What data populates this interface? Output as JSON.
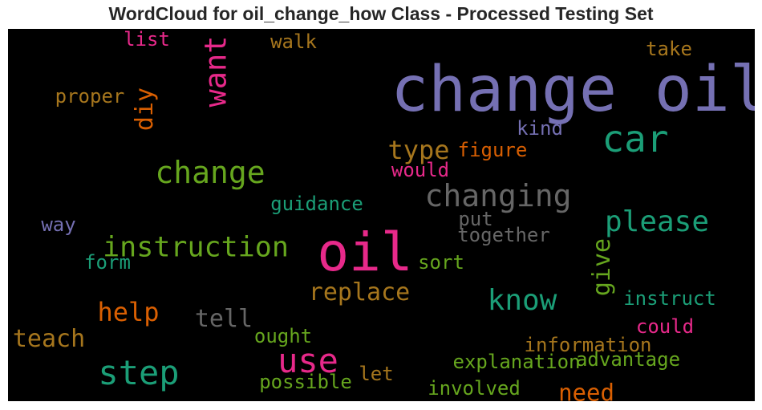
{
  "chart_data": {
    "type": "wordcloud",
    "title": "WordCloud for oil_change_how Class - Processed Testing Set",
    "background": "#000000",
    "colormap": [
      "#7570b3",
      "#1b9e77",
      "#d95f02",
      "#e7298a",
      "#66a61e",
      "#a6761d",
      "#666666"
    ],
    "words": [
      {
        "text": "change oil",
        "weight": 1.0,
        "color": "#7570b3"
      },
      {
        "text": "oil",
        "weight": 0.85,
        "color": "#e7298a"
      },
      {
        "text": "car",
        "weight": 0.56,
        "color": "#1b9e77"
      },
      {
        "text": "step",
        "weight": 0.5,
        "color": "#1b9e77"
      },
      {
        "text": "use",
        "weight": 0.5,
        "color": "#e7298a"
      },
      {
        "text": "change",
        "weight": 0.44,
        "color": "#66a61e"
      },
      {
        "text": "changing",
        "weight": 0.44,
        "color": "#666666"
      },
      {
        "text": "want",
        "weight": 0.42,
        "color": "#e7298a"
      },
      {
        "text": "please",
        "weight": 0.4,
        "color": "#1b9e77"
      },
      {
        "text": "know",
        "weight": 0.4,
        "color": "#1b9e77"
      },
      {
        "text": "instruction",
        "weight": 0.38,
        "color": "#66a61e"
      },
      {
        "text": "type",
        "weight": 0.33,
        "color": "#a6761d"
      },
      {
        "text": "help",
        "weight": 0.33,
        "color": "#d95f02"
      },
      {
        "text": "replace",
        "weight": 0.3,
        "color": "#a6761d"
      },
      {
        "text": "teach",
        "weight": 0.3,
        "color": "#a6761d"
      },
      {
        "text": "tell",
        "weight": 0.3,
        "color": "#666666"
      },
      {
        "text": "diy",
        "weight": 0.3,
        "color": "#d95f02"
      },
      {
        "text": "give",
        "weight": 0.3,
        "color": "#66a61e"
      },
      {
        "text": "need",
        "weight": 0.28,
        "color": "#d95f02"
      },
      {
        "text": "list",
        "weight": 0.2,
        "color": "#e7298a"
      },
      {
        "text": "walk",
        "weight": 0.2,
        "color": "#a6761d"
      },
      {
        "text": "take",
        "weight": 0.2,
        "color": "#a6761d"
      },
      {
        "text": "proper",
        "weight": 0.2,
        "color": "#a6761d"
      },
      {
        "text": "kind",
        "weight": 0.2,
        "color": "#7570b3"
      },
      {
        "text": "figure",
        "weight": 0.2,
        "color": "#d95f02"
      },
      {
        "text": "would",
        "weight": 0.2,
        "color": "#e7298a"
      },
      {
        "text": "guidance",
        "weight": 0.2,
        "color": "#1b9e77"
      },
      {
        "text": "way",
        "weight": 0.2,
        "color": "#7570b3"
      },
      {
        "text": "put",
        "weight": 0.2,
        "color": "#666666"
      },
      {
        "text": "together",
        "weight": 0.2,
        "color": "#666666"
      },
      {
        "text": "form",
        "weight": 0.2,
        "color": "#1b9e77"
      },
      {
        "text": "sort",
        "weight": 0.2,
        "color": "#66a61e"
      },
      {
        "text": "instruct",
        "weight": 0.2,
        "color": "#1b9e77"
      },
      {
        "text": "ought",
        "weight": 0.2,
        "color": "#66a61e"
      },
      {
        "text": "could",
        "weight": 0.2,
        "color": "#e7298a"
      },
      {
        "text": "information",
        "weight": 0.2,
        "color": "#a6761d"
      },
      {
        "text": "explanation",
        "weight": 0.2,
        "color": "#66a61e"
      },
      {
        "text": "advantage",
        "weight": 0.2,
        "color": "#66a61e"
      },
      {
        "text": "possible",
        "weight": 0.2,
        "color": "#66a61e"
      },
      {
        "text": "let",
        "weight": 0.2,
        "color": "#a6761d"
      },
      {
        "text": "involved",
        "weight": 0.2,
        "color": "#66a61e"
      }
    ]
  }
}
